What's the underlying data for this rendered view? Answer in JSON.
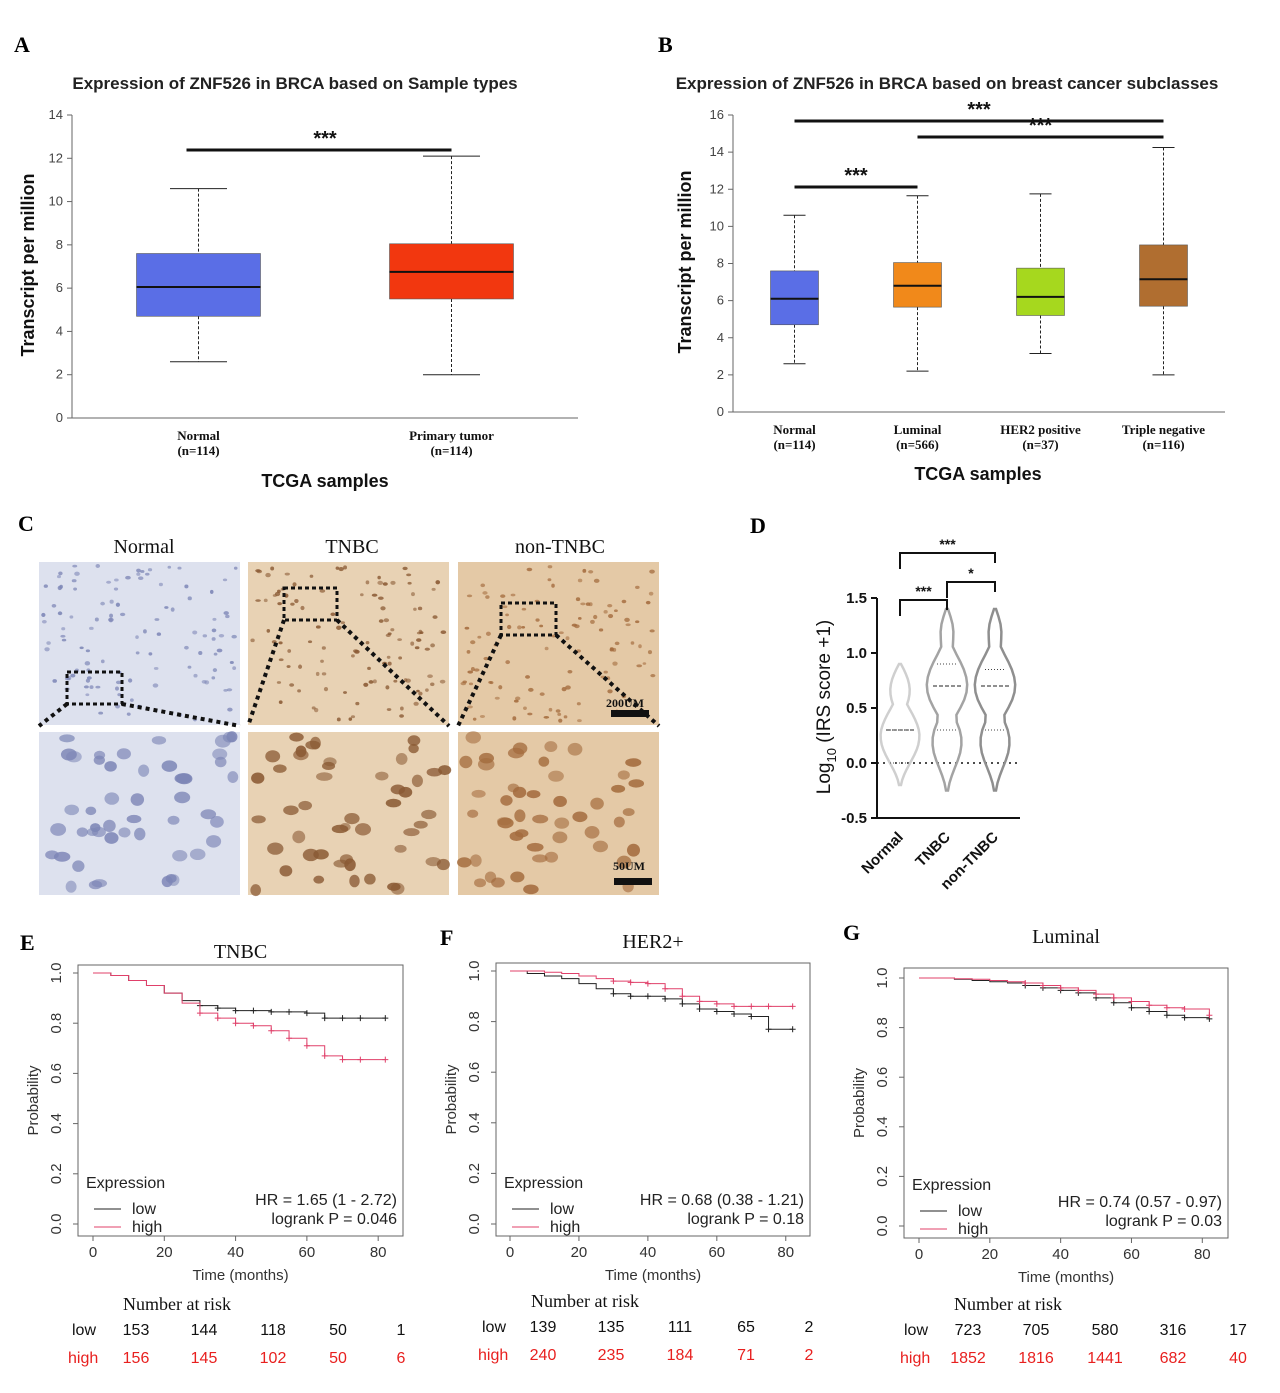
{
  "chart_data": [
    {
      "panel": "A",
      "type": "box",
      "title": "Expression of ZNF526 in BRCA based on Sample types",
      "xlabel": "TCGA samples",
      "ylabel": "Transcript per million",
      "ylim": [
        0,
        14
      ],
      "yticks": [
        "0",
        "2",
        "4",
        "6",
        "8",
        "10",
        "12",
        "14"
      ],
      "categories": [
        {
          "name": "Normal",
          "n": "(n=114)",
          "min": 2.6,
          "q1": 4.7,
          "median": 6.05,
          "q3": 7.6,
          "max": 10.6,
          "color": "#5a6ee6"
        },
        {
          "name": "Primary tumor",
          "n": "(n=114)",
          "min": 2.0,
          "q1": 5.5,
          "median": 6.75,
          "q3": 8.05,
          "max": 12.1,
          "color": "#f2370f"
        }
      ],
      "significance": [
        {
          "from": 0,
          "to": 1,
          "label": "***"
        }
      ]
    },
    {
      "panel": "B",
      "type": "box",
      "title": "Expression of ZNF526 in BRCA based on breast cancer subclasses",
      "xlabel": "TCGA samples",
      "ylabel": "Transcript per million",
      "ylim": [
        0,
        16
      ],
      "yticks": [
        "0",
        "2",
        "4",
        "6",
        "8",
        "10",
        "12",
        "14",
        "16"
      ],
      "categories": [
        {
          "name": "Normal",
          "n": "(n=114)",
          "min": 2.6,
          "q1": 4.7,
          "median": 6.1,
          "q3": 7.6,
          "max": 10.6,
          "color": "#5a6ee6"
        },
        {
          "name": "Luminal",
          "n": "(n=566)",
          "min": 2.2,
          "q1": 5.65,
          "median": 6.8,
          "q3": 8.05,
          "max": 11.65,
          "color": "#f1891a"
        },
        {
          "name": "HER2 positive",
          "n": "(n=37)",
          "min": 3.15,
          "q1": 5.2,
          "median": 6.2,
          "q3": 7.75,
          "max": 11.75,
          "color": "#a6d81e"
        },
        {
          "name": "Triple negative",
          "n": "(n=116)",
          "min": 2.0,
          "q1": 5.7,
          "median": 7.15,
          "q3": 9.0,
          "max": 14.25,
          "color": "#b06e30"
        }
      ],
      "significance": [
        {
          "from": 0,
          "to": 3,
          "label": "***"
        },
        {
          "from": 1,
          "to": 3,
          "label": "***"
        },
        {
          "from": 0,
          "to": 1,
          "label": "***"
        }
      ]
    },
    {
      "panel": "D",
      "type": "violin",
      "ylabel": "Log10 (IRS score +1)",
      "ylabel_main": "Log",
      "ylabel_sub": "10",
      "ylabel_rest": " (IRS score +1)",
      "ylim": [
        -0.5,
        1.5
      ],
      "yticks": [
        "-0.5",
        "0.0",
        "0.5",
        "1.0",
        "1.5"
      ],
      "categories": [
        "Normal",
        "TNBC",
        "non-TNBC"
      ],
      "medians": [
        0.3,
        0.7,
        0.7
      ],
      "quartiles": [
        [
          0.0,
          0.3
        ],
        [
          0.3,
          0.9
        ],
        [
          0.3,
          0.85
        ]
      ],
      "range": [
        [
          -0.2,
          0.9
        ],
        [
          -0.25,
          1.4
        ],
        [
          -0.25,
          1.4
        ]
      ],
      "colors": [
        "#cfcfcf",
        "#a3a3a3",
        "#8f8f8f"
      ],
      "significance": [
        {
          "from": 0,
          "to": 2,
          "label": "***"
        },
        {
          "from": 1,
          "to": 2,
          "label": "*"
        },
        {
          "from": 0,
          "to": 1,
          "label": "***"
        }
      ]
    },
    {
      "panel": "E",
      "type": "line",
      "title": "TNBC",
      "xlabel": "Time (months)",
      "ylabel": "Probability",
      "xlim": [
        0,
        85
      ],
      "ylim": [
        0,
        1
      ],
      "xticks": [
        "0",
        "20",
        "40",
        "60",
        "80"
      ],
      "yticks": [
        "0.0",
        "0.2",
        "0.4",
        "0.6",
        "0.8",
        "1.0"
      ],
      "legend_title": "Expression",
      "series": [
        {
          "name": "low",
          "color": "#222222",
          "x": [
            0,
            5,
            10,
            15,
            20,
            25,
            30,
            35,
            40,
            45,
            50,
            55,
            60,
            65,
            70,
            75,
            82
          ],
          "y": [
            1.0,
            0.99,
            0.97,
            0.95,
            0.92,
            0.89,
            0.87,
            0.86,
            0.85,
            0.85,
            0.845,
            0.845,
            0.84,
            0.82,
            0.82,
            0.82,
            0.82
          ]
        },
        {
          "name": "high",
          "color": "#e0406a",
          "x": [
            0,
            5,
            10,
            15,
            20,
            25,
            30,
            35,
            40,
            45,
            50,
            55,
            60,
            65,
            70,
            75,
            82
          ],
          "y": [
            1.0,
            0.99,
            0.97,
            0.95,
            0.92,
            0.88,
            0.84,
            0.82,
            0.8,
            0.79,
            0.77,
            0.74,
            0.71,
            0.67,
            0.655,
            0.655,
            0.655
          ]
        }
      ],
      "hr": "HR = 1.65 (1 - 2.72)",
      "logrank": "logrank P = 0.046",
      "risk_heading": "Number at risk",
      "risk_low_label": "low",
      "risk_high_label": "high",
      "risk_low": [
        "153",
        "144",
        "118",
        "50",
        "1"
      ],
      "risk_high": [
        "156",
        "145",
        "102",
        "50",
        "6"
      ]
    },
    {
      "panel": "F",
      "type": "line",
      "title": "HER2+",
      "xlabel": "Time (months)",
      "ylabel": "Probability",
      "xlim": [
        0,
        85
      ],
      "ylim": [
        0,
        1
      ],
      "xticks": [
        "0",
        "20",
        "40",
        "60",
        "80"
      ],
      "yticks": [
        "0.0",
        "0.2",
        "0.4",
        "0.6",
        "0.8",
        "1.0"
      ],
      "legend_title": "Expression",
      "series": [
        {
          "name": "low",
          "color": "#222222",
          "x": [
            0,
            5,
            10,
            15,
            20,
            25,
            30,
            35,
            40,
            45,
            50,
            55,
            60,
            65,
            70,
            75,
            82
          ],
          "y": [
            1.0,
            0.99,
            0.98,
            0.97,
            0.95,
            0.93,
            0.91,
            0.9,
            0.9,
            0.89,
            0.87,
            0.85,
            0.84,
            0.83,
            0.82,
            0.77,
            0.77
          ]
        },
        {
          "name": "high",
          "color": "#e0406a",
          "x": [
            0,
            5,
            10,
            15,
            20,
            25,
            30,
            35,
            40,
            45,
            50,
            55,
            60,
            65,
            70,
            75,
            82
          ],
          "y": [
            1.0,
            1.0,
            0.995,
            0.99,
            0.98,
            0.97,
            0.96,
            0.955,
            0.95,
            0.93,
            0.9,
            0.88,
            0.87,
            0.86,
            0.86,
            0.86,
            0.86
          ]
        }
      ],
      "hr": "HR = 0.68 (0.38 - 1.21)",
      "logrank": "logrank P = 0.18",
      "risk_heading": "Number at risk",
      "risk_low_label": "low",
      "risk_high_label": "high",
      "risk_low": [
        "139",
        "135",
        "111",
        "65",
        "2"
      ],
      "risk_high": [
        "240",
        "235",
        "184",
        "71",
        "2"
      ]
    },
    {
      "panel": "G",
      "type": "line",
      "title": "Luminal",
      "xlabel": "Time (months)",
      "ylabel": "Probability",
      "xlim": [
        0,
        85
      ],
      "ylim": [
        0,
        1
      ],
      "xticks": [
        "0",
        "20",
        "40",
        "60",
        "80"
      ],
      "yticks": [
        "0.0",
        "0.2",
        "0.4",
        "0.6",
        "0.8",
        "1.0"
      ],
      "legend_title": "Expression",
      "series": [
        {
          "name": "low",
          "color": "#222222",
          "x": [
            0,
            5,
            10,
            15,
            20,
            25,
            30,
            35,
            40,
            45,
            50,
            55,
            60,
            65,
            70,
            75,
            82
          ],
          "y": [
            1.0,
            1.0,
            0.995,
            0.99,
            0.985,
            0.98,
            0.97,
            0.96,
            0.95,
            0.94,
            0.92,
            0.9,
            0.88,
            0.865,
            0.85,
            0.84,
            0.835
          ]
        },
        {
          "name": "high",
          "color": "#e0406a",
          "x": [
            0,
            5,
            10,
            15,
            20,
            25,
            30,
            35,
            40,
            45,
            50,
            55,
            60,
            65,
            70,
            75,
            82
          ],
          "y": [
            1.0,
            1.0,
            0.997,
            0.995,
            0.99,
            0.985,
            0.98,
            0.97,
            0.96,
            0.95,
            0.935,
            0.92,
            0.905,
            0.89,
            0.88,
            0.875,
            0.85
          ]
        }
      ],
      "hr": "HR = 0.74 (0.57 - 0.97)",
      "logrank": "logrank P = 0.03",
      "risk_heading": "Number at risk",
      "risk_low_label": "low",
      "risk_high_label": "high",
      "risk_low": [
        "723",
        "705",
        "580",
        "316",
        "17"
      ],
      "risk_high": [
        "1852",
        "1816",
        "1441",
        "682",
        "40"
      ]
    }
  ],
  "panels": {
    "a": "A",
    "b": "B",
    "c": "C",
    "d": "D",
    "e": "E",
    "f": "F",
    "g": "G"
  },
  "ihc": {
    "columns": [
      "Normal",
      "TNBC",
      "non-TNBC"
    ],
    "scale_top": "200UM",
    "scale_bottom": "50UM",
    "colors": {
      "normal_bg": "#dde1ee",
      "normal_cell": "#7d86b6",
      "tnbc_bg": "#e8d2b4",
      "tnbc_cell": "#8a5a34",
      "non_bg": "#e4c9a6",
      "non_cell": "#a46c3e"
    }
  }
}
